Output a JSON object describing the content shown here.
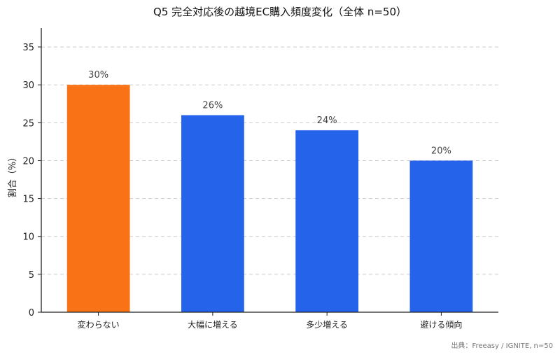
{
  "chart_data": {
    "type": "bar",
    "title": "Q5 完全対応後の越境EC購入頻度変化（全体 n=50）",
    "xlabel": "",
    "ylabel": "割合（%）",
    "categories": [
      "変わらない",
      "大幅に増える",
      "多少増える",
      "避ける傾向"
    ],
    "values": [
      30,
      26,
      24,
      20
    ],
    "value_labels": [
      "30%",
      "26%",
      "24%",
      "20%"
    ],
    "colors": [
      "#F97316",
      "#2563EB",
      "#2563EB",
      "#2563EB"
    ],
    "ylim": [
      0,
      37.5
    ],
    "yticks": [
      0,
      5,
      10,
      15,
      20,
      25,
      30,
      35
    ],
    "grid": true,
    "source": "出典：Freeasy / IGNITE, n=50"
  }
}
